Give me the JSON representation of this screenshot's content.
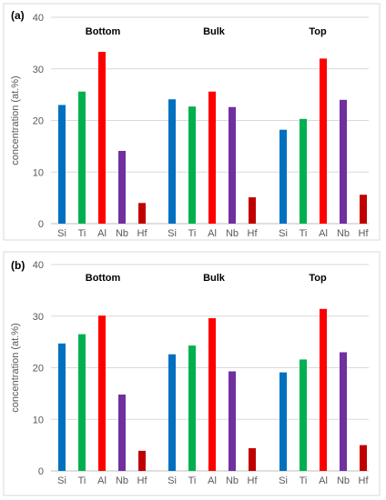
{
  "chart_data": [
    {
      "panel_label": "(a)",
      "type": "bar",
      "ylabel": "concentration (at.%)",
      "ylim": [
        0,
        40
      ],
      "yticks": [
        "0",
        "10",
        "20",
        "30",
        "40"
      ],
      "grid": true,
      "groups": [
        {
          "title": "Bottom",
          "categories": [
            "Si",
            "Ti",
            "Al",
            "Nb",
            "Hf"
          ],
          "values": [
            23.0,
            25.6,
            33.3,
            14.1,
            4.0
          ]
        },
        {
          "title": "Bulk",
          "categories": [
            "Si",
            "Ti",
            "Al",
            "Nb",
            "Hf"
          ],
          "values": [
            24.1,
            22.7,
            25.6,
            22.6,
            5.1
          ]
        },
        {
          "title": "Top",
          "categories": [
            "Si",
            "Ti",
            "Al",
            "Nb",
            "Hf"
          ],
          "values": [
            18.2,
            20.3,
            32.0,
            24.0,
            5.6
          ]
        }
      ]
    },
    {
      "panel_label": "(b)",
      "type": "bar",
      "ylabel": "concentration (at.%)",
      "ylim": [
        0,
        40
      ],
      "yticks": [
        "0",
        "10",
        "20",
        "30",
        "40"
      ],
      "grid": true,
      "groups": [
        {
          "title": "Bottom",
          "categories": [
            "Si",
            "Ti",
            "Al",
            "Nb",
            "Hf"
          ],
          "values": [
            24.7,
            26.5,
            30.1,
            14.8,
            3.9
          ]
        },
        {
          "title": "Bulk",
          "categories": [
            "Si",
            "Ti",
            "Al",
            "Nb",
            "Hf"
          ],
          "values": [
            22.6,
            24.3,
            29.6,
            19.3,
            4.4
          ]
        },
        {
          "title": "Top",
          "categories": [
            "Si",
            "Ti",
            "Al",
            "Nb",
            "Hf"
          ],
          "values": [
            19.1,
            21.6,
            31.4,
            23.0,
            5.0
          ]
        }
      ]
    }
  ],
  "element_colors": {
    "Si": "#0070c0",
    "Ti": "#00b050",
    "Al": "#ff0000",
    "Nb": "#7030a0",
    "Hf": "#c00000"
  }
}
